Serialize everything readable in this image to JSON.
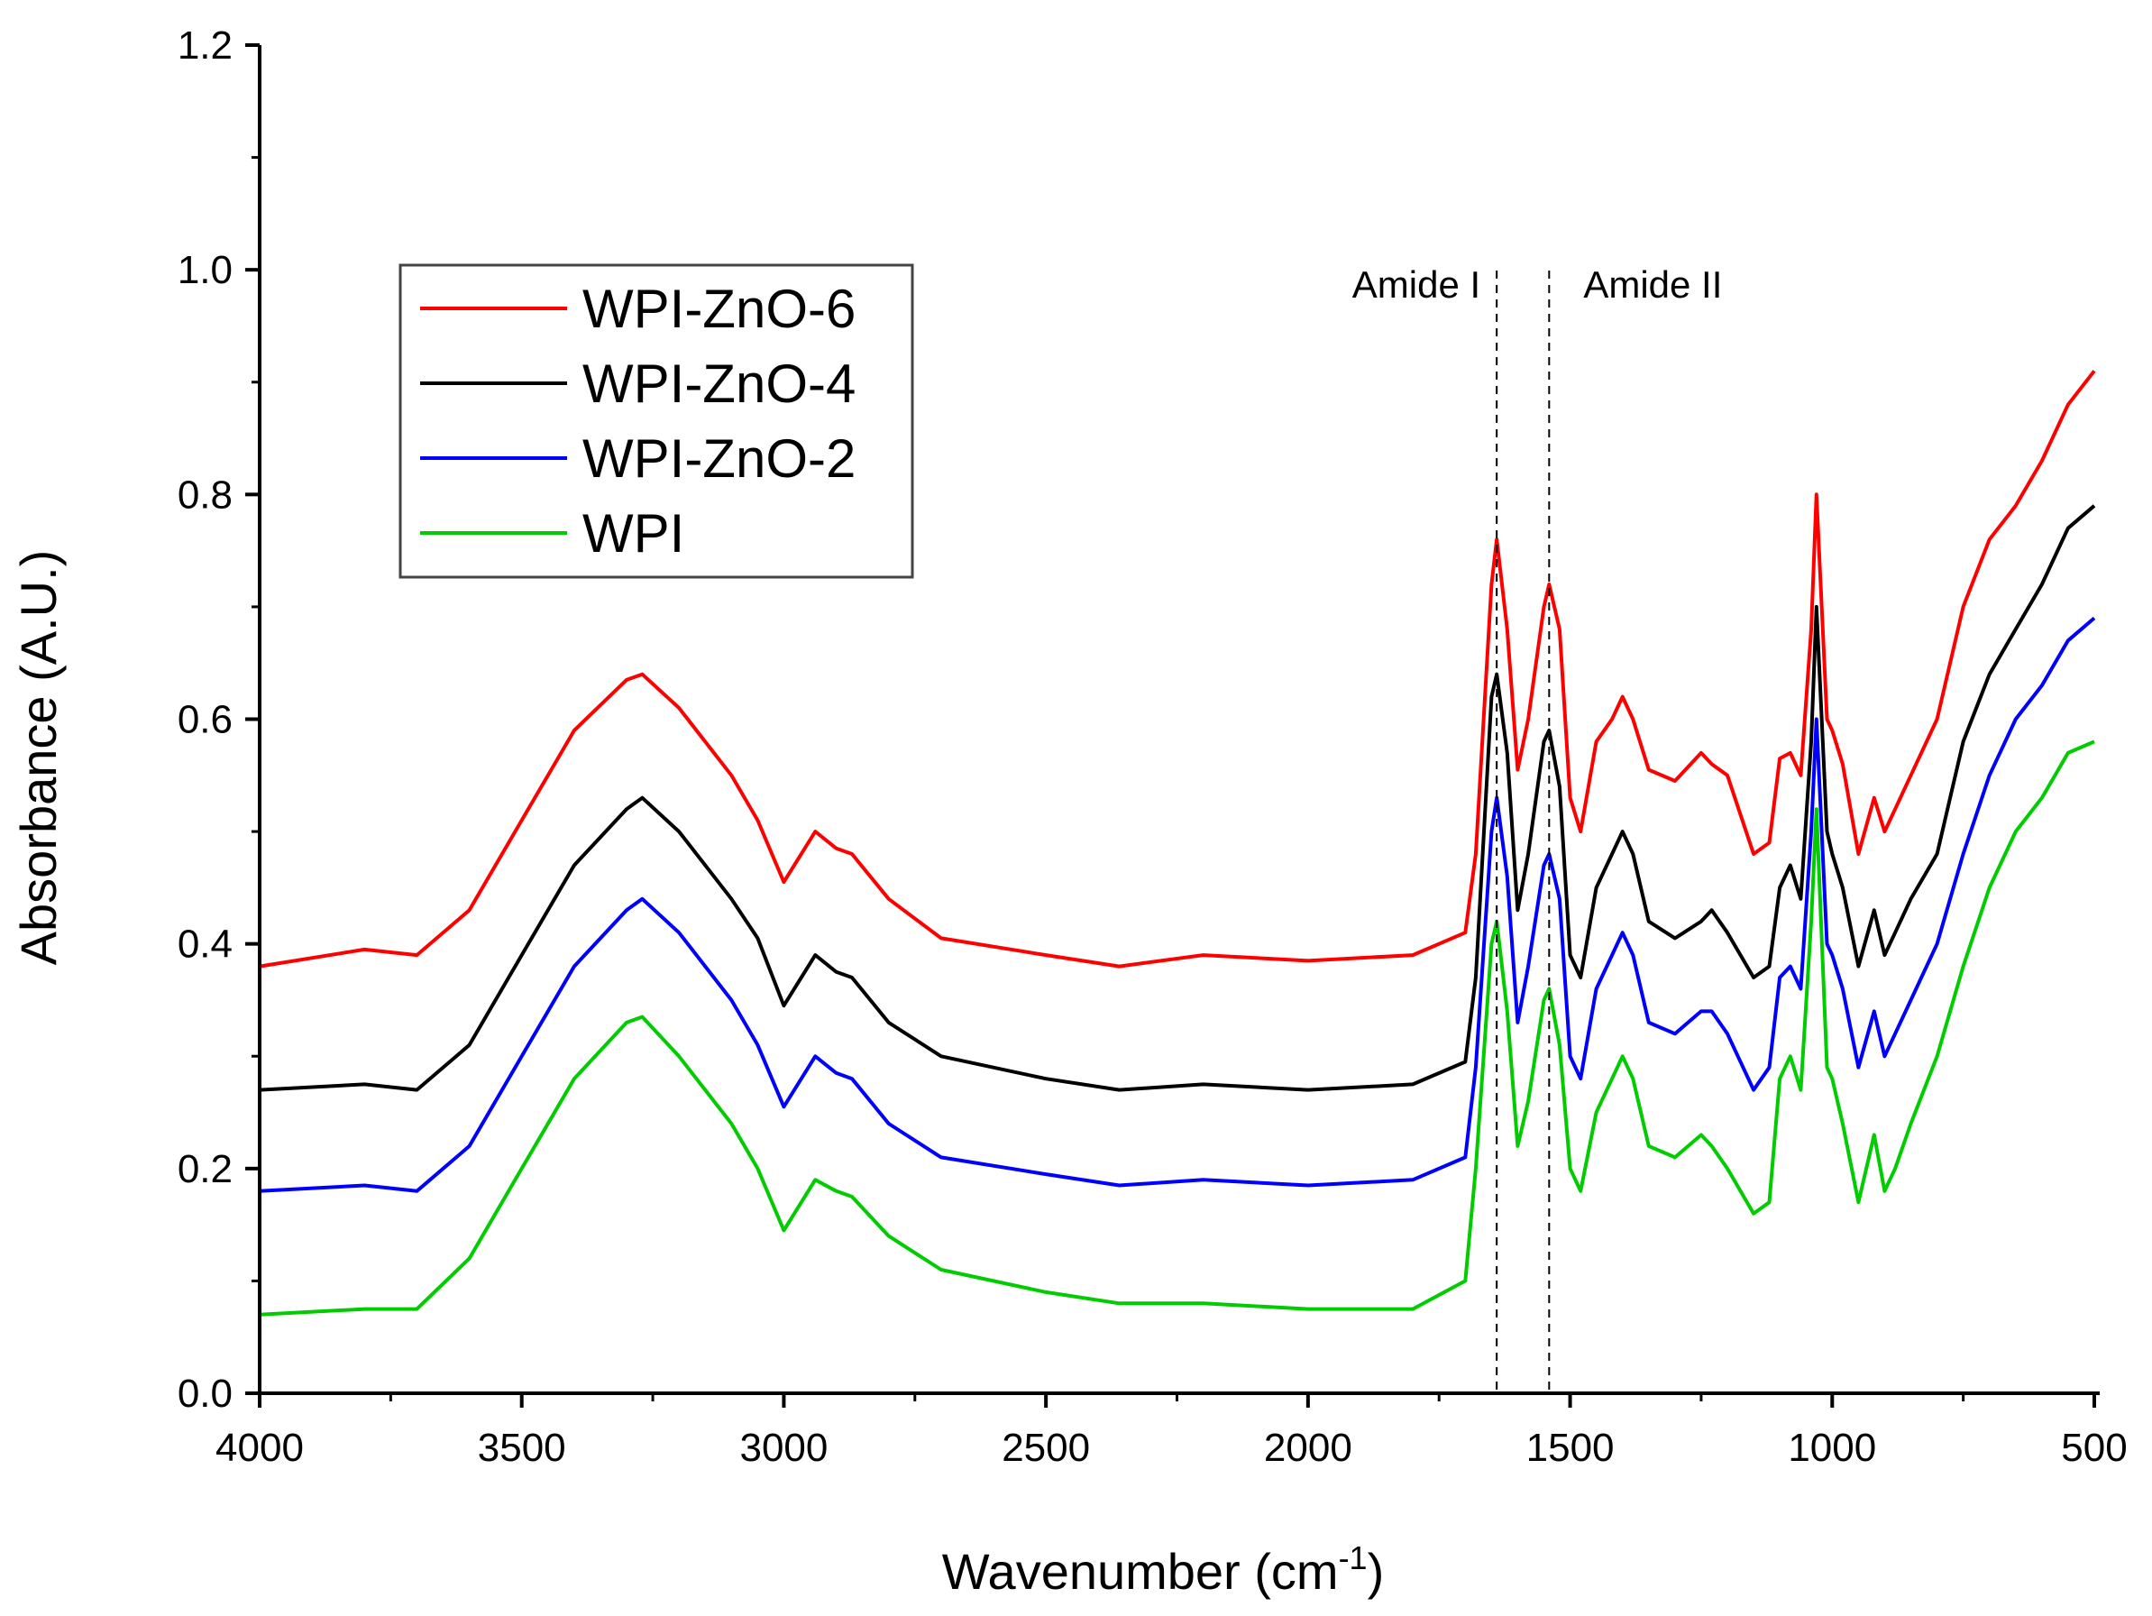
{
  "chart_data": {
    "type": "line",
    "title": "",
    "xlabel": "Wavenumber (cm",
    "xlabel_sup": "-1",
    "xlabel_close": ")",
    "ylabel": "Absorbance (A.U.)",
    "xlim": [
      4000,
      500
    ],
    "ylim": [
      0.0,
      1.2
    ],
    "x_ticks": [
      "4000",
      "3500",
      "3000",
      "2500",
      "2000",
      "1500",
      "1000",
      "500"
    ],
    "y_ticks": [
      "0.0",
      "0.2",
      "0.4",
      "0.6",
      "0.8",
      "1.0",
      "1.2"
    ],
    "x_tick_values": [
      4000,
      3500,
      3000,
      2500,
      2000,
      1500,
      1000,
      500
    ],
    "y_tick_values": [
      0.0,
      0.2,
      0.4,
      0.6,
      0.8,
      1.0,
      1.2
    ],
    "legend_position": "upper-left",
    "annotations": [
      {
        "text": "Amide I",
        "x": 1640
      },
      {
        "text": "Amide II",
        "x": 1540
      }
    ],
    "x": [
      4000,
      3800,
      3700,
      3600,
      3500,
      3400,
      3300,
      3270,
      3200,
      3100,
      3050,
      3000,
      2940,
      2900,
      2870,
      2800,
      2700,
      2500,
      2360,
      2200,
      2000,
      1800,
      1700,
      1680,
      1650,
      1640,
      1620,
      1600,
      1580,
      1550,
      1540,
      1520,
      1500,
      1480,
      1450,
      1420,
      1400,
      1380,
      1350,
      1300,
      1250,
      1230,
      1200,
      1150,
      1120,
      1100,
      1080,
      1060,
      1040,
      1030,
      1010,
      1000,
      980,
      950,
      920,
      900,
      880,
      850,
      800,
      750,
      700,
      650,
      600,
      550,
      500
    ],
    "series": [
      {
        "name": "WPI-ZnO-6",
        "color": "#ff0000",
        "values": [
          0.38,
          0.395,
          0.39,
          0.43,
          0.51,
          0.59,
          0.635,
          0.64,
          0.61,
          0.55,
          0.51,
          0.455,
          0.5,
          0.485,
          0.48,
          0.44,
          0.405,
          0.39,
          0.38,
          0.39,
          0.385,
          0.39,
          0.41,
          0.48,
          0.72,
          0.76,
          0.68,
          0.555,
          0.6,
          0.7,
          0.72,
          0.68,
          0.53,
          0.5,
          0.58,
          0.6,
          0.62,
          0.6,
          0.555,
          0.545,
          0.57,
          0.56,
          0.55,
          0.48,
          0.49,
          0.565,
          0.57,
          0.55,
          0.68,
          0.8,
          0.6,
          0.59,
          0.56,
          0.48,
          0.53,
          0.5,
          0.52,
          0.55,
          0.6,
          0.7,
          0.76,
          0.79,
          0.83,
          0.88,
          0.91
        ]
      },
      {
        "name": "WPI-ZnO-4",
        "color": "#000000",
        "values": [
          0.27,
          0.275,
          0.27,
          0.31,
          0.39,
          0.47,
          0.52,
          0.53,
          0.5,
          0.44,
          0.405,
          0.345,
          0.39,
          0.375,
          0.37,
          0.33,
          0.3,
          0.28,
          0.27,
          0.275,
          0.27,
          0.275,
          0.295,
          0.37,
          0.62,
          0.64,
          0.57,
          0.43,
          0.48,
          0.58,
          0.59,
          0.54,
          0.39,
          0.37,
          0.45,
          0.48,
          0.5,
          0.48,
          0.42,
          0.405,
          0.42,
          0.43,
          0.41,
          0.37,
          0.38,
          0.45,
          0.47,
          0.44,
          0.58,
          0.7,
          0.5,
          0.48,
          0.45,
          0.38,
          0.43,
          0.39,
          0.41,
          0.44,
          0.48,
          0.58,
          0.64,
          0.68,
          0.72,
          0.77,
          0.79
        ]
      },
      {
        "name": "WPI-ZnO-2",
        "color": "#0000ff",
        "values": [
          0.18,
          0.185,
          0.18,
          0.22,
          0.3,
          0.38,
          0.43,
          0.44,
          0.41,
          0.35,
          0.31,
          0.255,
          0.3,
          0.285,
          0.28,
          0.24,
          0.21,
          0.195,
          0.185,
          0.19,
          0.185,
          0.19,
          0.21,
          0.29,
          0.5,
          0.53,
          0.46,
          0.33,
          0.38,
          0.47,
          0.48,
          0.44,
          0.3,
          0.28,
          0.36,
          0.39,
          0.41,
          0.39,
          0.33,
          0.32,
          0.34,
          0.34,
          0.32,
          0.27,
          0.29,
          0.37,
          0.38,
          0.36,
          0.5,
          0.6,
          0.4,
          0.39,
          0.36,
          0.29,
          0.34,
          0.3,
          0.32,
          0.35,
          0.4,
          0.48,
          0.55,
          0.6,
          0.63,
          0.67,
          0.69
        ]
      },
      {
        "name": "WPI",
        "color": "#00cc00",
        "values": [
          0.07,
          0.075,
          0.075,
          0.12,
          0.2,
          0.28,
          0.33,
          0.335,
          0.3,
          0.24,
          0.2,
          0.145,
          0.19,
          0.18,
          0.175,
          0.14,
          0.11,
          0.09,
          0.08,
          0.08,
          0.075,
          0.075,
          0.1,
          0.2,
          0.4,
          0.42,
          0.34,
          0.22,
          0.26,
          0.35,
          0.36,
          0.31,
          0.2,
          0.18,
          0.25,
          0.28,
          0.3,
          0.28,
          0.22,
          0.21,
          0.23,
          0.22,
          0.2,
          0.16,
          0.17,
          0.28,
          0.3,
          0.27,
          0.42,
          0.52,
          0.29,
          0.28,
          0.24,
          0.17,
          0.23,
          0.18,
          0.2,
          0.24,
          0.3,
          0.38,
          0.45,
          0.5,
          0.53,
          0.57,
          0.58
        ]
      }
    ]
  }
}
